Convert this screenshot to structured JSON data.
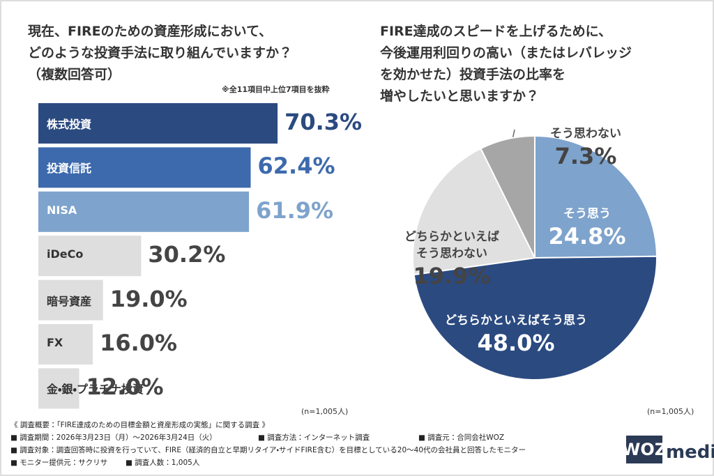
{
  "chart_data": [
    {
      "type": "bar",
      "title": "現在、FIREのための資産形成において、\nどのような投資手法に取り組んでいますか？\n（複数回答可）",
      "note": "※全11項目中上位7項目を抜粋",
      "sample": "(n=1,005人)",
      "categories": [
        "株式投資",
        "投資信託",
        "NISA",
        "iDeCo",
        "暗号資産",
        "FX",
        "金・銀・プラチナ投資"
      ],
      "values": [
        70.3,
        62.4,
        61.9,
        30.2,
        19.0,
        16.0,
        12.0
      ],
      "value_labels": [
        "70.3%",
        "62.4%",
        "61.9%",
        "30.2%",
        "19.0%",
        "16.0%",
        "12.0%"
      ],
      "colors": [
        "#2b4a80",
        "#3d6aad",
        "#7ea3cc",
        "#dedede",
        "#dedede",
        "#dedede",
        "#dedede"
      ]
    },
    {
      "type": "pie",
      "title": "FIRE達成のスピードを上げるために、\n今後運用利回りの高い（またはレバレッジ\nを効かせた）投資手法の比率を\n増やしたいと思いますか？",
      "sample": "(n=1,005人)",
      "categories": [
        "そう思う",
        "どちらかといえばそう思う",
        "どちらかといえば\nそう思わない",
        "そう思わない"
      ],
      "values": [
        24.8,
        48.0,
        19.9,
        7.3
      ],
      "value_labels": [
        "24.8%",
        "48.0%",
        "19.9%",
        "7.3%"
      ],
      "colors": [
        "#7ea3cc",
        "#2b4a80",
        "#e0e0e0",
        "#a6a6a6"
      ]
    }
  ],
  "footer": {
    "rows": [
      [
        "《 調査概要：「FIRE達成のための目標金額と資産形成の実態」に関する調査 》"
      ],
      [
        "■ 調査期間：2026年3月23日（月）～2026年3月24日（火）",
        "■ 調査方法：インターネット調査",
        "■ 調査元：合同会社WOZ"
      ],
      [
        "■ 調査対象：調査回答時に投資を行っていて、FIRE（経済的自立と早期リタイア・サイドFIRE含む）を目標としている20～40代の会社員と回答したモニター"
      ],
      [
        "■ モニター提供元：サクリサ",
        "■ 調査人数：1,005人"
      ]
    ],
    "logo": [
      "WOZ",
      "media"
    ]
  }
}
